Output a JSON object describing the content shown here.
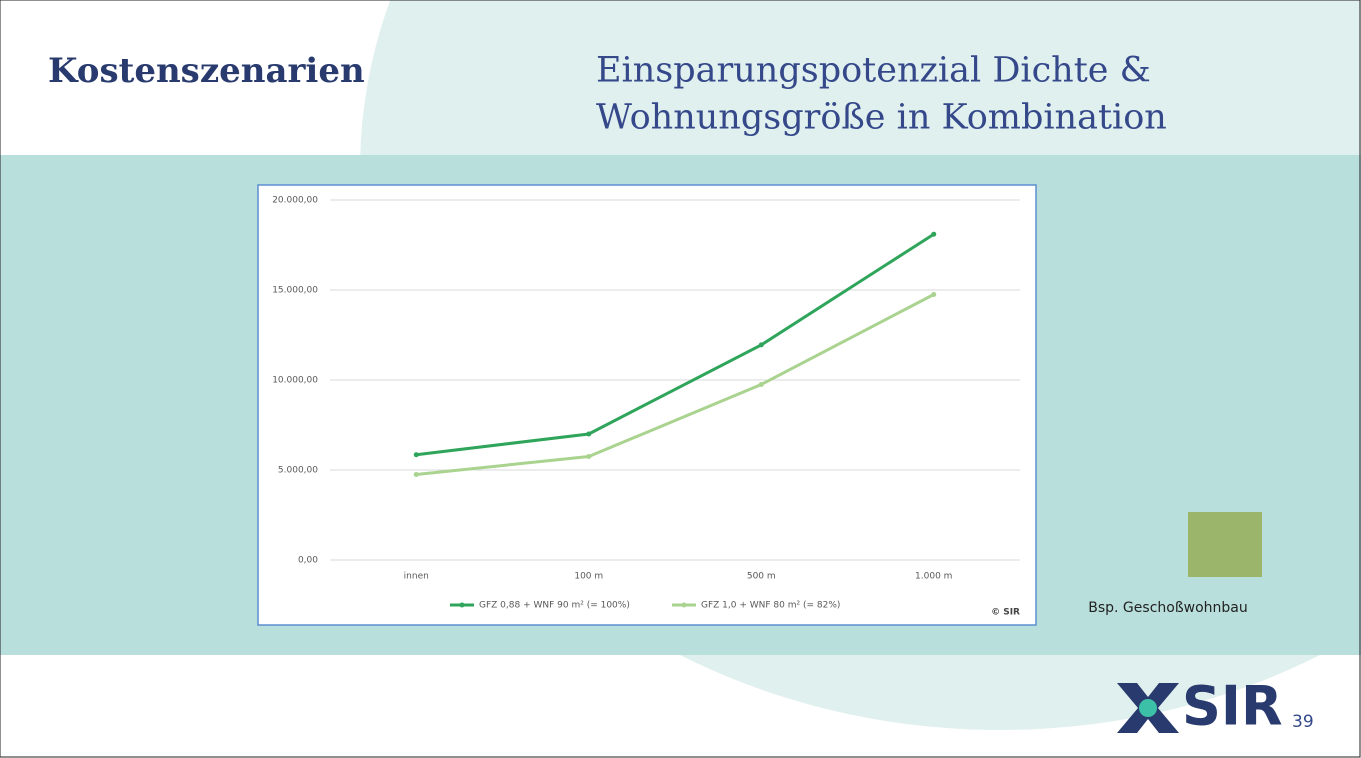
{
  "header": {
    "title": "Kostenszenarien",
    "subtitle": [
      "Einsparungspotenzial Dichte &",
      "Wohnungsgröße in Kombination"
    ]
  },
  "chart_data": {
    "type": "line",
    "categories": [
      "innen",
      "100 m",
      "500 m",
      "1.000 m"
    ],
    "series": [
      {
        "name": "GFZ 0,88 + WNF 90 m² (= 100%)",
        "color": "#2ea55a",
        "values": [
          5850,
          7000,
          11950,
          18100
        ]
      },
      {
        "name": "GFZ 1,0 + WNF 80 m² (= 82%)",
        "color": "#a9d38f",
        "values": [
          4750,
          5750,
          9750,
          14750
        ]
      }
    ],
    "ylim": [
      0,
      20000
    ],
    "yticks": [
      {
        "value": 0,
        "label": "0,00"
      },
      {
        "value": 5000,
        "label": "5.000,00"
      },
      {
        "value": 10000,
        "label": "10.000,00"
      },
      {
        "value": 15000,
        "label": "15.000,00"
      },
      {
        "value": 20000,
        "label": "20.000,00"
      }
    ],
    "grid": true,
    "legend": "bottom",
    "annotation": "© SIR"
  },
  "side_caption": "Bsp. Geschoßwohnbau",
  "footer": {
    "logo": "SIR",
    "page_number": "39"
  }
}
